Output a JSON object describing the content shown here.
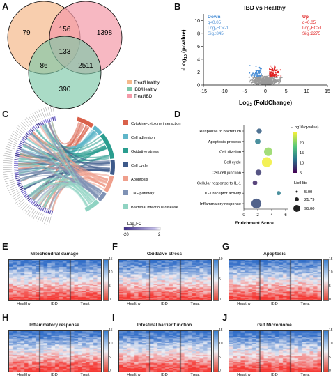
{
  "panels": {
    "A": "A",
    "B": "B",
    "C": "C",
    "D": "D",
    "E": "E",
    "F": "F",
    "G": "G",
    "H": "H",
    "I": "I",
    "J": "J"
  },
  "venn": {
    "regions": {
      "only_treat_healthy": "79",
      "only_treat_ibd": "1398",
      "th_ti": "156",
      "all": "133",
      "th_ih": "86",
      "ih_ti": "2511",
      "only_ibd_healthy": "390"
    },
    "legend": [
      "Treat/Healthy",
      "IBD/Healthy",
      "Treat/IBD"
    ],
    "colors": [
      "#f5b98b",
      "#7cc7a7",
      "#f49aa8"
    ]
  },
  "volcano": {
    "title": "IBD vs Healthy",
    "xlabel": "Log",
    "xlabel_sub": "2",
    "xlabel_rest": " (FoldChange)",
    "ylabel": "-Log",
    "ylabel_sub": "10",
    "ylabel_rest": " (p-value)",
    "xticks": [
      "-15",
      "-10",
      "-5",
      "0",
      "5",
      "10",
      "15"
    ],
    "yticks": [
      "0",
      "2",
      "4",
      "6",
      "8",
      "10"
    ],
    "down": {
      "title": "Down",
      "q": "q<0.05",
      "fc": "Log₂FC<-1",
      "sig": "Sig.:845",
      "color": "#4a8fd6"
    },
    "up": {
      "title": "Up",
      "q": "q<0.05",
      "fc": "Log₂FC>1",
      "sig": "Sig.:2275",
      "color": "#e02020"
    }
  },
  "chord": {
    "legend": [
      {
        "label": "Cytokine-cytokine interaction",
        "color": "#d9614a"
      },
      {
        "label": "Cell adhesion",
        "color": "#5fb6c9"
      },
      {
        "label": "Oxidative stress",
        "color": "#2a9d8f"
      },
      {
        "label": "Cell cycle",
        "color": "#3d5a8a"
      },
      {
        "label": "Apoptosis",
        "color": "#ef9f8c"
      },
      {
        "label": "TNF pathway",
        "color": "#7f92b5"
      },
      {
        "label": "Bacterial infectious disease",
        "color": "#8fd3c2"
      }
    ],
    "fc_label": "Log₂FC",
    "fc_min": "-20",
    "fc_max": "2"
  },
  "chart_data": {
    "type": "scatter",
    "xlabel": "Enrichment Score",
    "categories": [
      "Response to bacterium",
      "Apoptosis process",
      "Cell division",
      "Cell cycle",
      "Cell-cell junction",
      "Cellular response to IL-1",
      "IL-1 receptor activity",
      "Inflammatory response"
    ],
    "x": [
      2.2,
      2.0,
      3.5,
      3.3,
      2.1,
      1.6,
      5.0,
      1.8
    ],
    "q": [
      10,
      12,
      21,
      25,
      8,
      7,
      12,
      9
    ],
    "hits": [
      10,
      12,
      40,
      60,
      15,
      8,
      5,
      60
    ],
    "xticks": [
      "0",
      "2",
      "4",
      "6"
    ],
    "xlim": [
      0,
      6
    ],
    "colorbar_title": "-Log10(q-value)",
    "colorbar_ticks": [
      "20",
      "15",
      "10",
      "5"
    ],
    "size_title": "ListHits",
    "size_labels": [
      "5.00",
      "21.79",
      "95.00"
    ]
  },
  "heatmaps": [
    {
      "letter": "E",
      "title": "Mitochondrial damage",
      "groups": [
        "Healthy",
        "IBD",
        "Treat"
      ],
      "ticks": [
        "15",
        "10",
        "5",
        "0"
      ]
    },
    {
      "letter": "F",
      "title": "Oxidative stress",
      "groups": [
        "Healthy",
        "IBD",
        "Treat"
      ],
      "ticks": [
        "10",
        "5",
        "0"
      ]
    },
    {
      "letter": "G",
      "title": "Apoptosis",
      "groups": [
        "Healthy",
        "IBD",
        "Treat"
      ],
      "ticks": [
        "15",
        "10",
        "5",
        "0"
      ]
    },
    {
      "letter": "H",
      "title": "Inflammatory response",
      "groups": [
        "Healthy",
        "IBD",
        "Treat"
      ],
      "ticks": [
        "15",
        "10",
        "5",
        "0"
      ]
    },
    {
      "letter": "I",
      "title": "Intestinal barrier function",
      "groups": [
        "Healthy",
        "IBD",
        "Treat"
      ],
      "ticks": [
        "15",
        "10",
        "5",
        "0"
      ]
    },
    {
      "letter": "J",
      "title": "Gut Microbiome",
      "groups": [
        "Healthy",
        "IBD",
        "Treat"
      ],
      "ticks": [
        "15",
        "10",
        "5",
        "0"
      ]
    }
  ]
}
